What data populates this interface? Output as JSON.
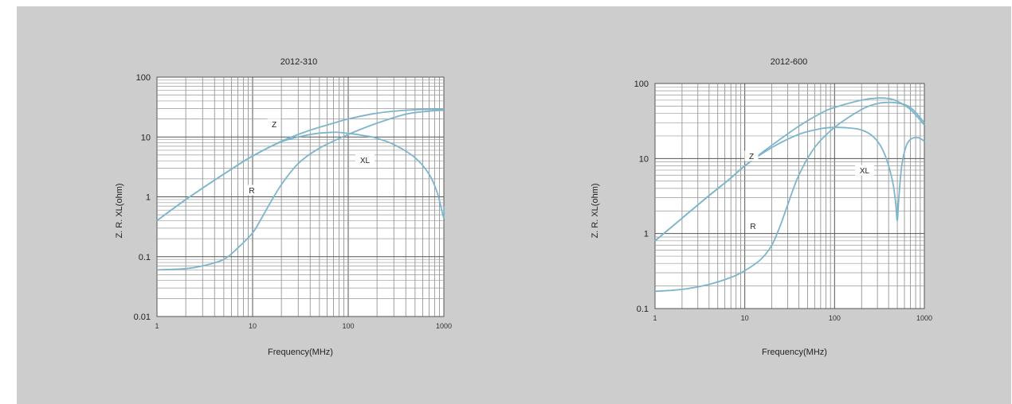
{
  "chart_data": [
    {
      "type": "line",
      "title": "2012-310",
      "xlabel": "Frequency(MHz)",
      "ylabel": "Z.  R.  XL(ohm)",
      "xscale": "log",
      "yscale": "log",
      "xlim": [
        1,
        1000
      ],
      "ylim": [
        0.01,
        100
      ],
      "xticks": [
        "1",
        "10",
        "100",
        "1000"
      ],
      "yticks": [
        "0.01",
        "0.1",
        "1",
        "10",
        "100"
      ],
      "grid": true,
      "series": [
        {
          "name": "Z",
          "x": [
            1,
            2,
            4,
            7,
            10,
            20,
            40,
            70,
            100,
            200,
            400,
            700,
            1000
          ],
          "y": [
            0.4,
            0.9,
            1.9,
            3.4,
            4.8,
            8.5,
            13,
            17,
            20,
            25,
            28,
            29,
            29
          ]
        },
        {
          "name": "R",
          "x": [
            1,
            2,
            3,
            5,
            7,
            10,
            12,
            15,
            20,
            30,
            50,
            100,
            200,
            400,
            700,
            1000
          ],
          "y": [
            0.06,
            0.063,
            0.07,
            0.09,
            0.14,
            0.25,
            0.4,
            0.75,
            1.6,
            3.6,
            6.5,
            11,
            17,
            24,
            27,
            28
          ]
        },
        {
          "name": "XL",
          "x": [
            1,
            2,
            4,
            7,
            10,
            20,
            40,
            70,
            100,
            150,
            200,
            300,
            500,
            700,
            850,
            950,
            1000,
            1050
          ],
          "y": [
            0.4,
            0.9,
            1.9,
            3.4,
            4.8,
            8.3,
            11,
            12,
            11.5,
            10.5,
            9.5,
            7.5,
            4.5,
            2.4,
            1.2,
            0.6,
            0.45,
            0.7
          ]
        }
      ],
      "annotations": [
        "Z",
        "XL",
        "R"
      ]
    },
    {
      "type": "line",
      "title": "2012-600",
      "xlabel": "Frequency(MHz)",
      "ylabel": "Z.  R.  XL(ohm)",
      "xscale": "log",
      "yscale": "log",
      "xlim": [
        1,
        1000
      ],
      "ylim": [
        0.1,
        100
      ],
      "xticks": [
        "1",
        "10",
        "100",
        "1000"
      ],
      "yticks": [
        "0.1",
        "1",
        "10",
        "100"
      ],
      "grid": true,
      "series": [
        {
          "name": "Z",
          "x": [
            1,
            2,
            4,
            7,
            10,
            20,
            40,
            70,
            100,
            200,
            300,
            400,
            500,
            700,
            1000
          ],
          "y": [
            0.8,
            1.6,
            3.2,
            5.5,
            8,
            15,
            27,
            40,
            48,
            60,
            64,
            63,
            58,
            45,
            28
          ]
        },
        {
          "name": "R",
          "x": [
            1,
            2,
            4,
            7,
            10,
            15,
            20,
            25,
            30,
            40,
            60,
            100,
            200,
            300,
            400,
            500,
            700,
            1000
          ],
          "y": [
            0.17,
            0.18,
            0.21,
            0.26,
            0.32,
            0.45,
            0.7,
            1.3,
            2.4,
            6,
            14,
            26,
            45,
            54,
            56,
            55,
            48,
            30
          ]
        },
        {
          "name": "XL",
          "x": [
            1,
            2,
            4,
            7,
            10,
            20,
            40,
            70,
            100,
            150,
            200,
            250,
            300,
            350,
            400,
            450,
            480,
            500,
            520,
            560,
            620,
            700,
            850,
            1000
          ],
          "y": [
            0.8,
            1.6,
            3.2,
            5.5,
            8,
            14,
            21,
            25,
            26,
            25.5,
            24,
            21,
            17,
            12.5,
            8,
            4.5,
            2.5,
            1.5,
            3,
            8,
            14,
            18,
            19,
            17
          ]
        }
      ],
      "annotations": [
        "Z",
        "XL",
        "R"
      ]
    }
  ]
}
